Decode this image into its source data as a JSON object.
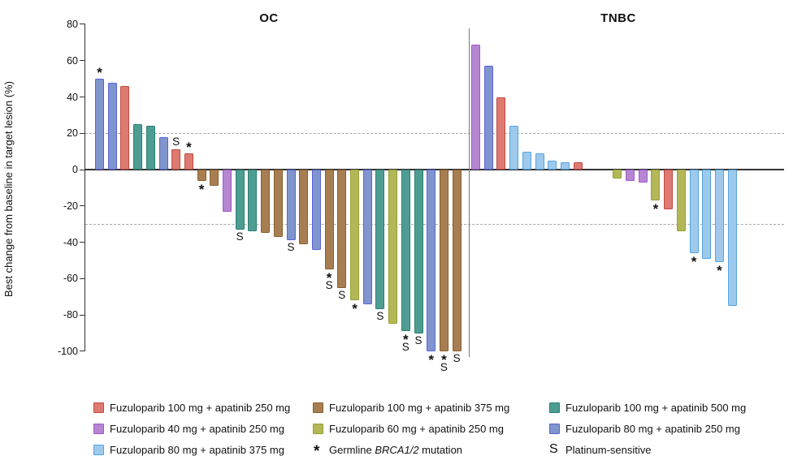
{
  "chart_data": {
    "type": "bar",
    "subtype": "waterfall",
    "ylabel": "Best change from baseline in target lesion (%)",
    "ylim": [
      -100,
      80
    ],
    "yticks": [
      80,
      60,
      40,
      20,
      0,
      -20,
      -40,
      -60,
      -80,
      -100
    ],
    "reference_lines": [
      20,
      -30
    ],
    "grid": "off",
    "symbols": {
      "brca": "*",
      "platinum": "S"
    },
    "doses": {
      "red": {
        "label": "Fuzuloparib 100 mg + apatinib 250 mg",
        "fill": "#DD7A71",
        "border": "#C4483E"
      },
      "brown": {
        "label": "Fuzuloparib 100 mg + apatinib 375 mg",
        "fill": "#A77E52",
        "border": "#8A5F2E"
      },
      "teal": {
        "label": "Fuzuloparib 100 mg + apatinib 500 mg",
        "fill": "#4E9D93",
        "border": "#2B7F72"
      },
      "purple": {
        "label": "Fuzuloparib 40 mg + apatinib 250 mg",
        "fill": "#B686D1",
        "border": "#A158CE"
      },
      "green": {
        "label": "Fuzuloparib 60 mg + apatinib 250 mg",
        "fill": "#B3B757",
        "border": "#94A32F"
      },
      "blue": {
        "label": "Fuzuloparib 80 mg + apatinib 250 mg",
        "fill": "#8094CD",
        "border": "#5A64D9"
      },
      "lightblue": {
        "label": "Fuzuloparib 80 mg + apatinib 375 mg",
        "fill": "#9EC9EB",
        "border": "#53A4E0"
      }
    },
    "panels": [
      {
        "title": "OC",
        "bars": [
          {
            "dose": "blue",
            "value": 50,
            "marks": [
              "brca"
            ]
          },
          {
            "dose": "blue",
            "value": 48
          },
          {
            "dose": "red",
            "value": 46
          },
          {
            "dose": "teal",
            "value": 25
          },
          {
            "dose": "teal",
            "value": 24
          },
          {
            "dose": "blue",
            "value": 18
          },
          {
            "dose": "red",
            "value": 11,
            "marks": [
              "platinum"
            ]
          },
          {
            "dose": "red",
            "value": 9,
            "marks": [
              "brca"
            ]
          },
          {
            "dose": "brown",
            "value": -6,
            "marks": [
              "brca"
            ]
          },
          {
            "dose": "brown",
            "value": -9
          },
          {
            "dose": "purple",
            "value": -23
          },
          {
            "dose": "teal",
            "value": -33,
            "marks": [
              "platinum"
            ]
          },
          {
            "dose": "teal",
            "value": -34
          },
          {
            "dose": "brown",
            "value": -35
          },
          {
            "dose": "brown",
            "value": -37
          },
          {
            "dose": "blue",
            "value": -39,
            "marks": [
              "platinum"
            ]
          },
          {
            "dose": "brown",
            "value": -41
          },
          {
            "dose": "blue",
            "value": -44
          },
          {
            "dose": "brown",
            "value": -55,
            "marks": [
              "brca",
              "platinum"
            ]
          },
          {
            "dose": "brown",
            "value": -65,
            "marks": [
              "platinum"
            ]
          },
          {
            "dose": "green",
            "value": -72,
            "marks": [
              "brca"
            ]
          },
          {
            "dose": "blue",
            "value": -74
          },
          {
            "dose": "teal",
            "value": -77,
            "marks": [
              "platinum"
            ]
          },
          {
            "dose": "green",
            "value": -85
          },
          {
            "dose": "teal",
            "value": -89,
            "marks": [
              "brca",
              "platinum"
            ]
          },
          {
            "dose": "teal",
            "value": -90,
            "marks": [
              "platinum"
            ]
          },
          {
            "dose": "blue",
            "value": -100,
            "marks": [
              "brca"
            ]
          },
          {
            "dose": "brown",
            "value": -100,
            "marks": [
              "brca",
              "platinum"
            ]
          },
          {
            "dose": "brown",
            "value": -100,
            "marks": [
              "platinum"
            ]
          }
        ]
      },
      {
        "title": "TNBC",
        "bars": [
          {
            "dose": "purple",
            "value": 69
          },
          {
            "dose": "blue",
            "value": 57
          },
          {
            "dose": "red",
            "value": 40
          },
          {
            "dose": "lightblue",
            "value": 24
          },
          {
            "dose": "lightblue",
            "value": 10
          },
          {
            "dose": "lightblue",
            "value": 9
          },
          {
            "dose": "lightblue",
            "value": 5
          },
          {
            "dose": "lightblue",
            "value": 4
          },
          {
            "dose": "red",
            "value": 4
          },
          {
            "dose": "green",
            "value": -5,
            "gap_before": true
          },
          {
            "dose": "purple",
            "value": -6
          },
          {
            "dose": "purple",
            "value": -7
          },
          {
            "dose": "green",
            "value": -17,
            "marks": [
              "brca"
            ]
          },
          {
            "dose": "red",
            "value": -22
          },
          {
            "dose": "green",
            "value": -34
          },
          {
            "dose": "lightblue",
            "value": -46,
            "marks": [
              "brca"
            ]
          },
          {
            "dose": "lightblue",
            "value": -49
          },
          {
            "dose": "lightblue",
            "value": -51,
            "marks": [
              "brca"
            ]
          },
          {
            "dose": "lightblue",
            "value": -75
          }
        ]
      }
    ],
    "legend": {
      "columns": [
        [
          {
            "swatch": "red"
          },
          {
            "swatch": "purple"
          },
          {
            "swatch": "lightblue"
          }
        ],
        [
          {
            "swatch": "brown"
          },
          {
            "swatch": "green"
          },
          {
            "symbol": "*",
            "label_prefix": "Germline ",
            "label_italic": "BRCA1/2",
            "label_suffix": " mutation"
          }
        ],
        [
          {
            "swatch": "teal"
          },
          {
            "swatch": "blue"
          },
          {
            "symbol": "S",
            "label": "Platinum-sensitive"
          }
        ]
      ]
    }
  }
}
